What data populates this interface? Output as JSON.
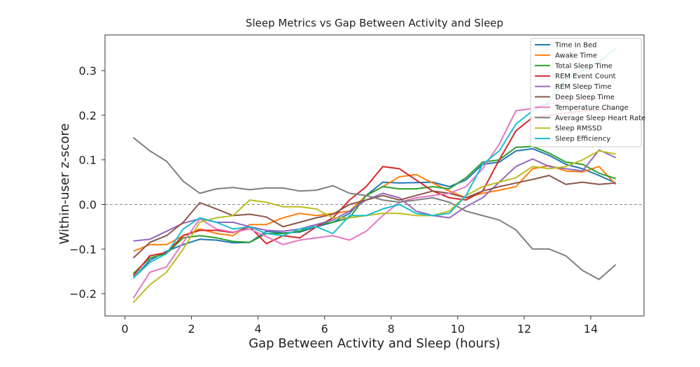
{
  "chart_data": {
    "type": "line",
    "title": "Sleep Metrics vs Gap Between Activity and Sleep",
    "xlabel": "Gap Between Activity and Sleep (hours)",
    "ylabel": "Within-user z-score",
    "xlim": [
      -0.6,
      15.6
    ],
    "ylim": [
      -0.25,
      0.38
    ],
    "xticks": [
      0,
      2,
      4,
      6,
      8,
      10,
      12,
      14
    ],
    "yticks": [
      -0.2,
      -0.1,
      0.0,
      0.1,
      0.2,
      0.3
    ],
    "ytick_labels": [
      "−0.2",
      "−0.1",
      "0.0",
      "0.1",
      "0.2",
      "0.3"
    ],
    "zero_line": true,
    "grid": false,
    "legend_position": "top-right",
    "x": [
      0.25,
      0.75,
      1.25,
      1.75,
      2.25,
      2.75,
      3.25,
      3.75,
      4.25,
      4.75,
      5.25,
      5.75,
      6.25,
      6.75,
      7.25,
      7.75,
      8.25,
      8.75,
      9.25,
      9.75,
      10.25,
      10.75,
      11.25,
      11.75,
      12.25,
      12.75,
      13.25,
      13.75,
      14.25,
      14.75
    ],
    "series": [
      {
        "name": "Time In Bed",
        "color": "#1f77b4",
        "values": [
          -0.165,
          -0.125,
          -0.105,
          -0.09,
          -0.078,
          -0.08,
          -0.086,
          -0.085,
          -0.06,
          -0.064,
          -0.062,
          -0.05,
          -0.04,
          -0.02,
          0.02,
          0.05,
          0.048,
          0.049,
          0.05,
          0.04,
          0.055,
          0.09,
          0.095,
          0.12,
          0.125,
          0.11,
          0.09,
          0.08,
          0.065,
          0.048
        ]
      },
      {
        "name": "Awake Time",
        "color": "#ff7f0e",
        "values": [
          -0.105,
          -0.09,
          -0.09,
          -0.07,
          -0.055,
          -0.065,
          -0.07,
          -0.045,
          -0.045,
          -0.03,
          -0.02,
          -0.025,
          -0.02,
          -0.015,
          0.02,
          0.04,
          0.062,
          0.067,
          0.048,
          0.03,
          0.015,
          0.025,
          0.032,
          0.04,
          0.08,
          0.087,
          0.075,
          0.073,
          0.085,
          0.045
        ]
      },
      {
        "name": "Total Sleep Time",
        "color": "#2ca02c",
        "values": [
          -0.155,
          -0.12,
          -0.11,
          -0.075,
          -0.07,
          -0.075,
          -0.083,
          -0.085,
          -0.065,
          -0.065,
          -0.06,
          -0.045,
          -0.04,
          -0.03,
          0.02,
          0.04,
          0.035,
          0.035,
          0.04,
          0.035,
          0.06,
          0.095,
          0.1,
          0.128,
          0.13,
          0.115,
          0.095,
          0.09,
          0.07,
          0.058
        ]
      },
      {
        "name": "REM Event Count",
        "color": "#d62728",
        "values": [
          -0.16,
          -0.115,
          -0.108,
          -0.07,
          -0.058,
          -0.058,
          -0.063,
          -0.05,
          -0.088,
          -0.07,
          -0.075,
          -0.05,
          -0.03,
          0.01,
          0.04,
          0.085,
          0.08,
          0.055,
          0.03,
          0.015,
          0.01,
          0.03,
          0.1,
          0.165,
          0.195,
          0.2,
          0.205,
          0.21,
          0.212,
          0.215
        ]
      },
      {
        "name": "REM Sleep Time",
        "color": "#9467bd",
        "values": [
          -0.082,
          -0.078,
          -0.06,
          -0.042,
          -0.032,
          -0.04,
          -0.04,
          -0.05,
          -0.058,
          -0.06,
          -0.055,
          -0.045,
          -0.035,
          -0.015,
          0.01,
          0.025,
          0.015,
          -0.015,
          -0.025,
          -0.03,
          -0.005,
          0.015,
          0.05,
          0.085,
          0.102,
          0.085,
          0.08,
          0.075,
          0.122,
          0.105
        ]
      },
      {
        "name": "Deep Sleep Time",
        "color": "#8c564b",
        "values": [
          -0.12,
          -0.085,
          -0.07,
          -0.04,
          0.004,
          -0.01,
          -0.025,
          -0.022,
          -0.028,
          -0.05,
          -0.04,
          -0.03,
          -0.022,
          0.0,
          0.01,
          0.02,
          0.01,
          0.02,
          0.03,
          0.025,
          0.015,
          0.03,
          0.04,
          0.048,
          0.056,
          0.065,
          0.045,
          0.05,
          0.045,
          0.048
        ]
      },
      {
        "name": "Temperature Change",
        "color": "#e377c2",
        "values": [
          -0.21,
          -0.152,
          -0.14,
          -0.085,
          -0.032,
          -0.055,
          -0.062,
          -0.055,
          -0.072,
          -0.09,
          -0.08,
          -0.075,
          -0.07,
          -0.08,
          -0.06,
          -0.025,
          0.005,
          0.015,
          0.02,
          0.025,
          0.04,
          0.08,
          0.135,
          0.21,
          0.215,
          0.225,
          0.232,
          0.235,
          0.238,
          0.24
        ]
      },
      {
        "name": "Average Sleep Heart Rate",
        "color": "#7f7f7f",
        "values": [
          0.15,
          0.12,
          0.097,
          0.052,
          0.025,
          0.035,
          0.038,
          0.033,
          0.037,
          0.037,
          0.03,
          0.032,
          0.042,
          0.025,
          0.02,
          0.01,
          0.005,
          0.01,
          0.015,
          0.005,
          -0.015,
          -0.025,
          -0.035,
          -0.057,
          -0.1,
          -0.1,
          -0.115,
          -0.148,
          -0.168,
          -0.135
        ]
      },
      {
        "name": "Sleep RMSSD",
        "color": "#bcbd22",
        "values": [
          -0.22,
          -0.18,
          -0.152,
          -0.1,
          -0.04,
          -0.03,
          -0.025,
          0.01,
          0.005,
          -0.005,
          -0.005,
          -0.01,
          -0.03,
          -0.03,
          -0.025,
          -0.02,
          -0.02,
          -0.025,
          -0.025,
          -0.015,
          0.02,
          0.04,
          0.05,
          0.06,
          0.085,
          0.08,
          0.085,
          0.1,
          0.12,
          0.113
        ]
      },
      {
        "name": "Sleep Efficiency",
        "color": "#17becf",
        "values": [
          -0.165,
          -0.13,
          -0.11,
          -0.055,
          -0.03,
          -0.04,
          -0.055,
          -0.05,
          -0.065,
          -0.07,
          -0.055,
          -0.05,
          -0.065,
          -0.025,
          -0.025,
          -0.01,
          0.0,
          -0.02,
          -0.025,
          -0.02,
          0.02,
          0.09,
          0.12,
          0.18,
          0.21,
          0.23,
          0.28,
          0.3,
          0.32,
          0.35
        ]
      }
    ]
  }
}
